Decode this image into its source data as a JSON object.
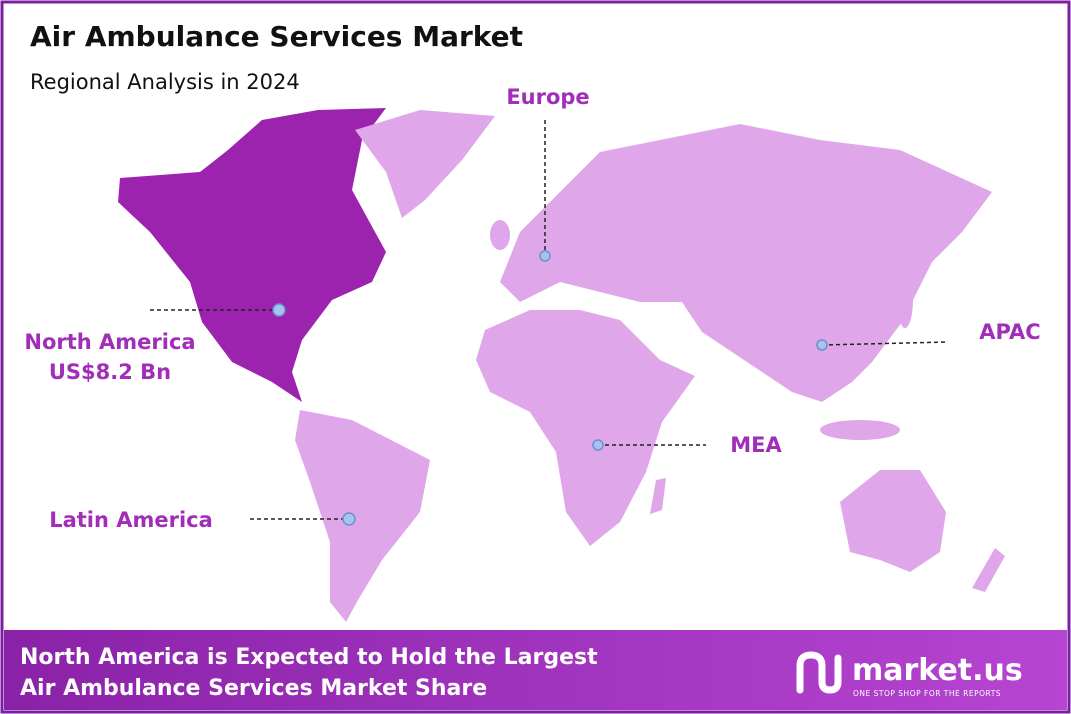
{
  "header": {
    "title": "Air Ambulance Services Market",
    "subtitle": "Regional Analysis in 2024"
  },
  "regions": [
    {
      "label": "North America",
      "value": "US$8.2 Bn"
    },
    {
      "label": "Europe"
    },
    {
      "label": "APAC"
    },
    {
      "label": "MEA"
    },
    {
      "label": "Latin America"
    }
  ],
  "footer": {
    "lines": [
      "North America is Expected to Hold the Largest",
      "Air Ambulance Services Market Share"
    ],
    "logo": "market.us",
    "tagline": "ONE STOP SHOP FOR THE REPORTS"
  }
}
